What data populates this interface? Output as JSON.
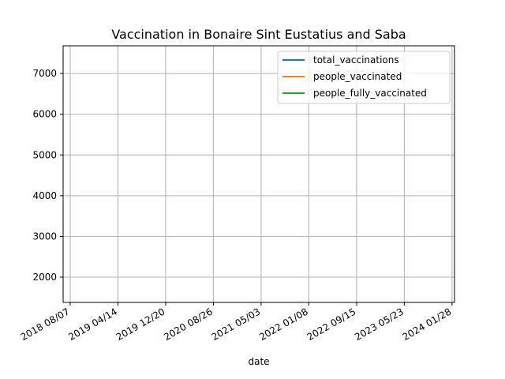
{
  "chart_data": {
    "type": "line",
    "title": "Vaccination in Bonaire Sint Eustatius and Saba",
    "xlabel": "date",
    "ylabel": "",
    "xlim": [
      "2018-07-01",
      "2024-02-10"
    ],
    "ylim": [
      1380,
      7680
    ],
    "x_ticks": [
      "2018-08-07",
      "2019-04-14",
      "2019-12-20",
      "2020-08-26",
      "2021-05-03",
      "2022-01-08",
      "2022-09-15",
      "2023-05-23",
      "2024-01-28"
    ],
    "x_tick_labels": [
      "2018 08/07",
      "2019 04/14",
      "2019 12/20",
      "2020 08/26",
      "2021 05/03",
      "2022 01/08",
      "2022 09/15",
      "2023 05/23",
      "2024 01/28"
    ],
    "y_ticks": [
      2000,
      3000,
      4000,
      5000,
      6000,
      7000
    ],
    "y_tick_labels": [
      "2000",
      "3000",
      "4000",
      "5000",
      "6000",
      "7000"
    ],
    "grid": true,
    "legend_position": "top-right",
    "series": [
      {
        "name": "total_vaccinations",
        "color": "#1f77b4",
        "x": [],
        "y": []
      },
      {
        "name": "people_vaccinated",
        "color": "#ff7f0e",
        "x": [],
        "y": []
      },
      {
        "name": "people_fully_vaccinated",
        "color": "#2ca02c",
        "x": [],
        "y": []
      }
    ]
  }
}
